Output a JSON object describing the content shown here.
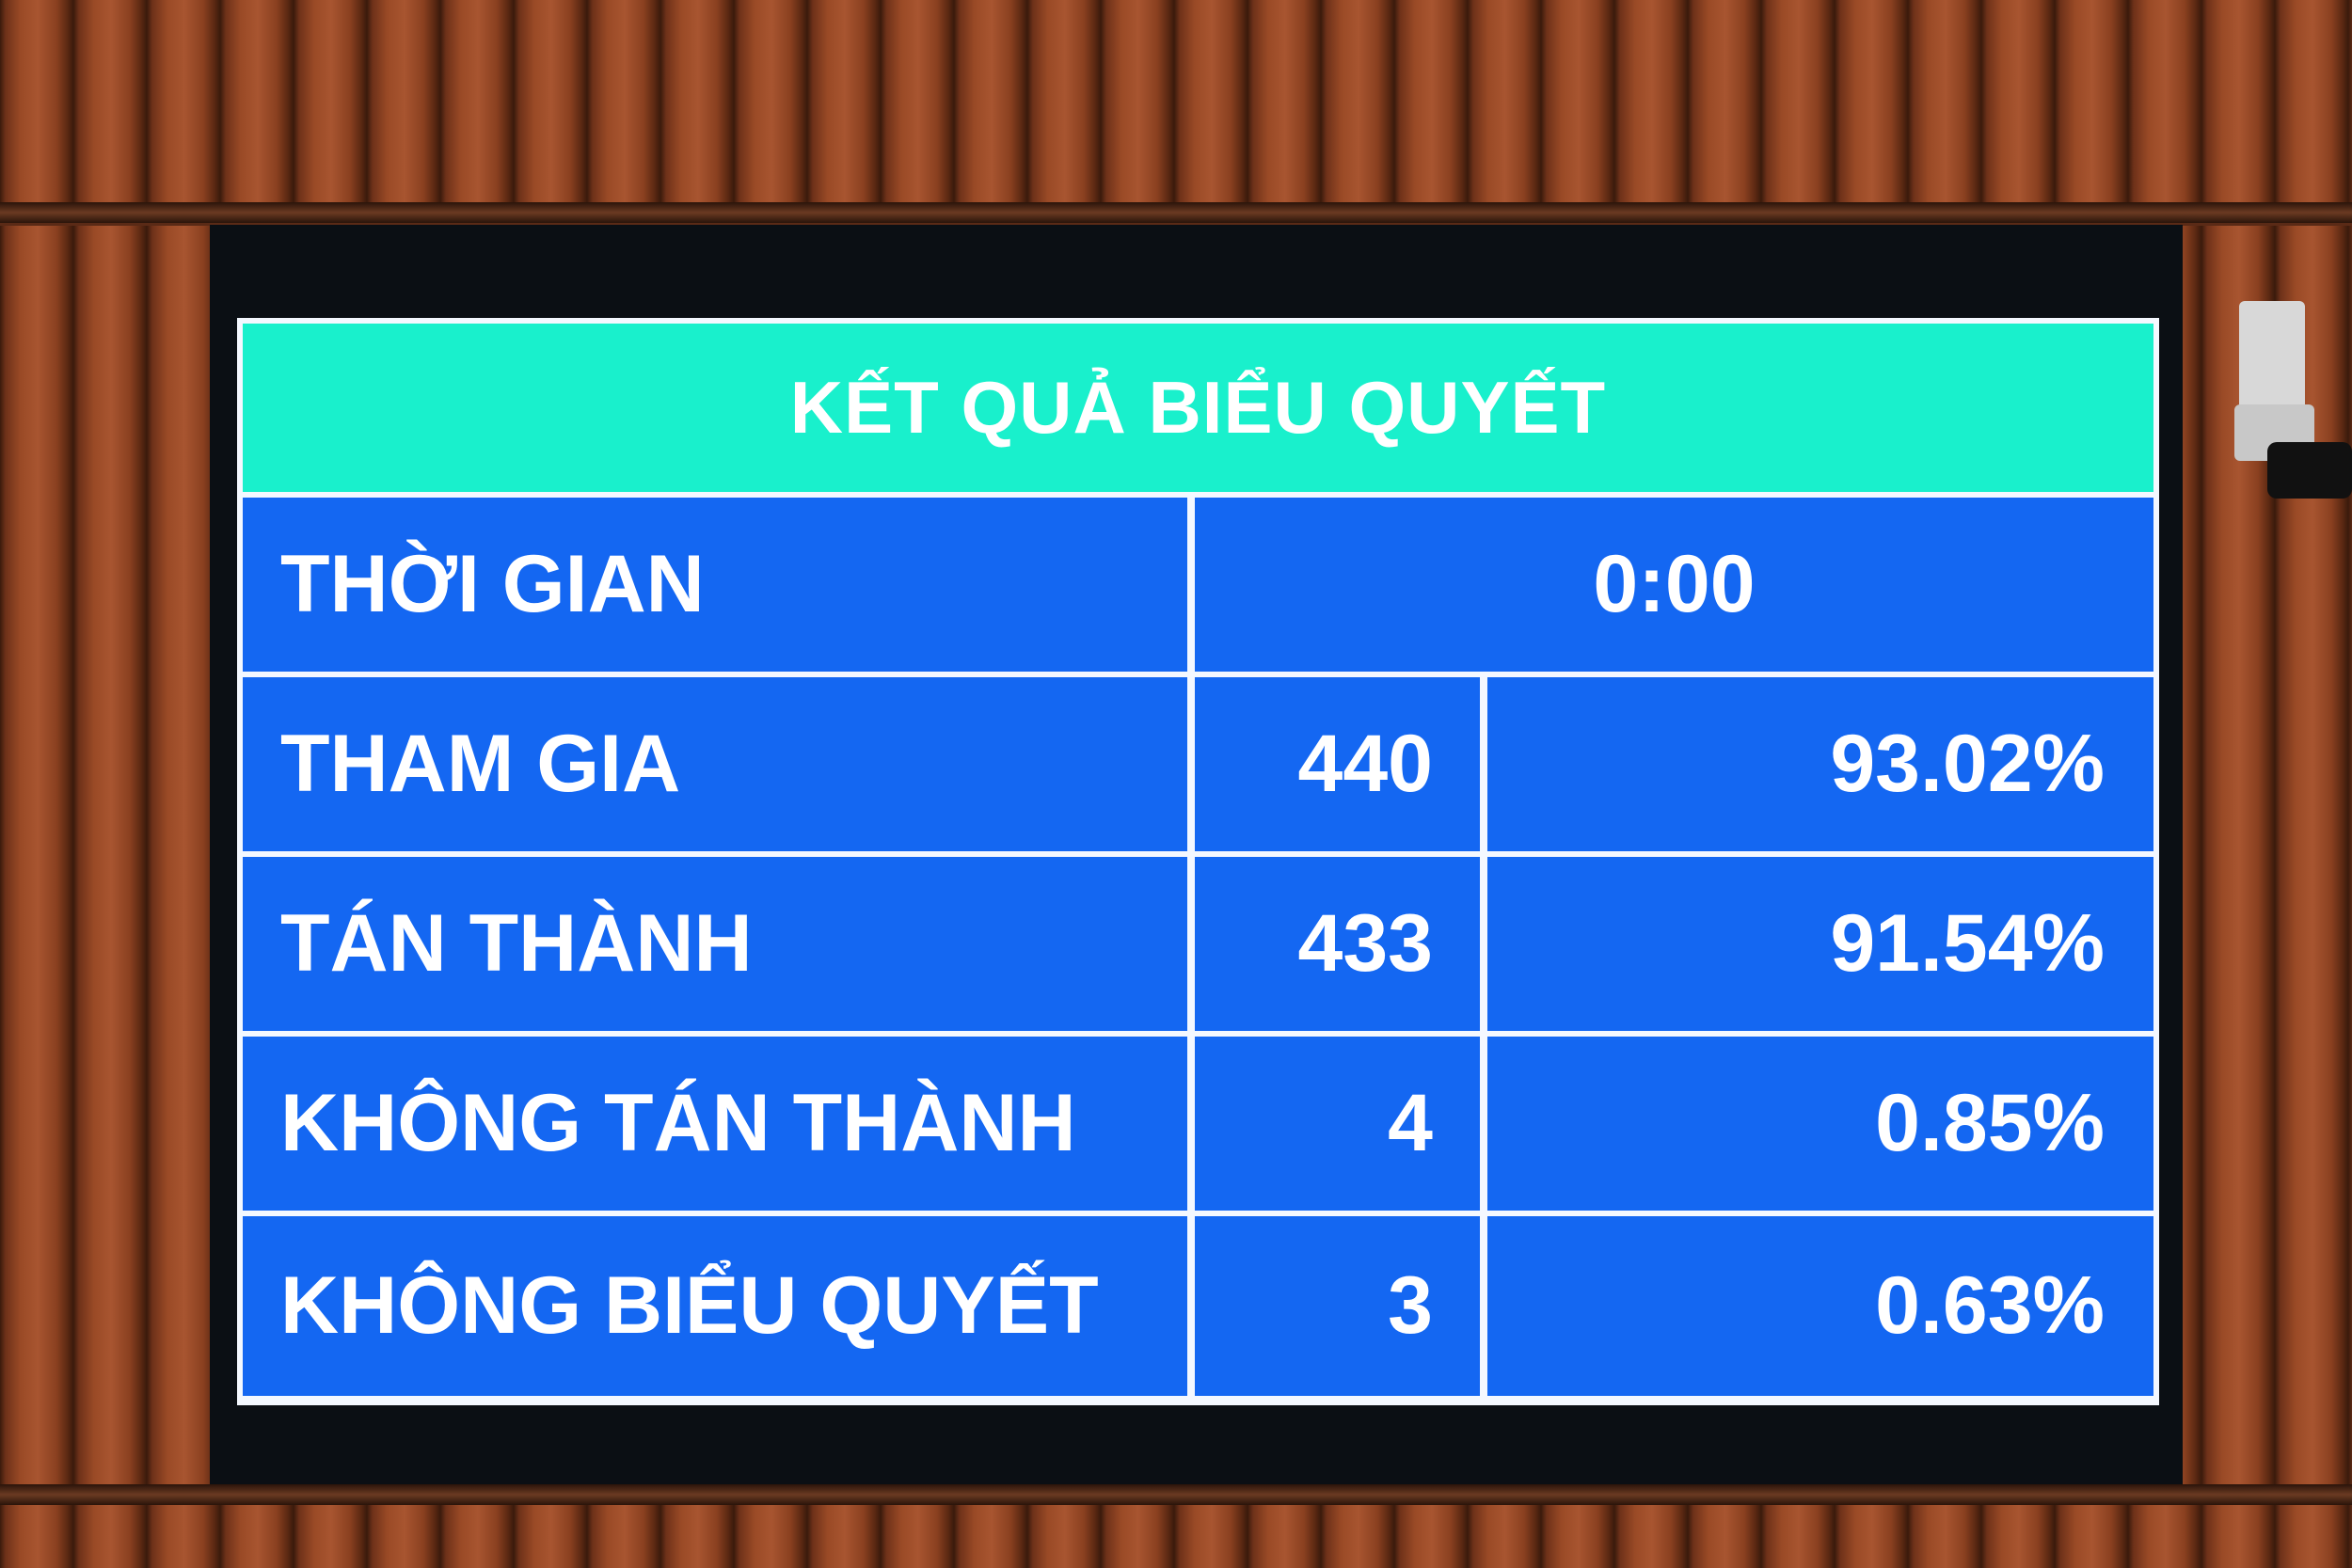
{
  "board": {
    "title": "KẾT QUẢ BIỂU QUYẾT",
    "time_label": "THỜI GIAN",
    "time_value": "0:00",
    "rows": [
      {
        "label": "THAM GIA",
        "count": "440",
        "percent": "93.02%"
      },
      {
        "label": "TÁN THÀNH",
        "count": "433",
        "percent": "91.54%"
      },
      {
        "label": "KHÔNG TÁN THÀNH",
        "count": "4",
        "percent": "0.85%"
      },
      {
        "label": "KHÔNG BIỂU QUYẾT",
        "count": "3",
        "percent": "0.63%"
      }
    ]
  },
  "colors": {
    "header": "#19f0cc",
    "cell": "#1467f2",
    "text": "#ffffff"
  }
}
